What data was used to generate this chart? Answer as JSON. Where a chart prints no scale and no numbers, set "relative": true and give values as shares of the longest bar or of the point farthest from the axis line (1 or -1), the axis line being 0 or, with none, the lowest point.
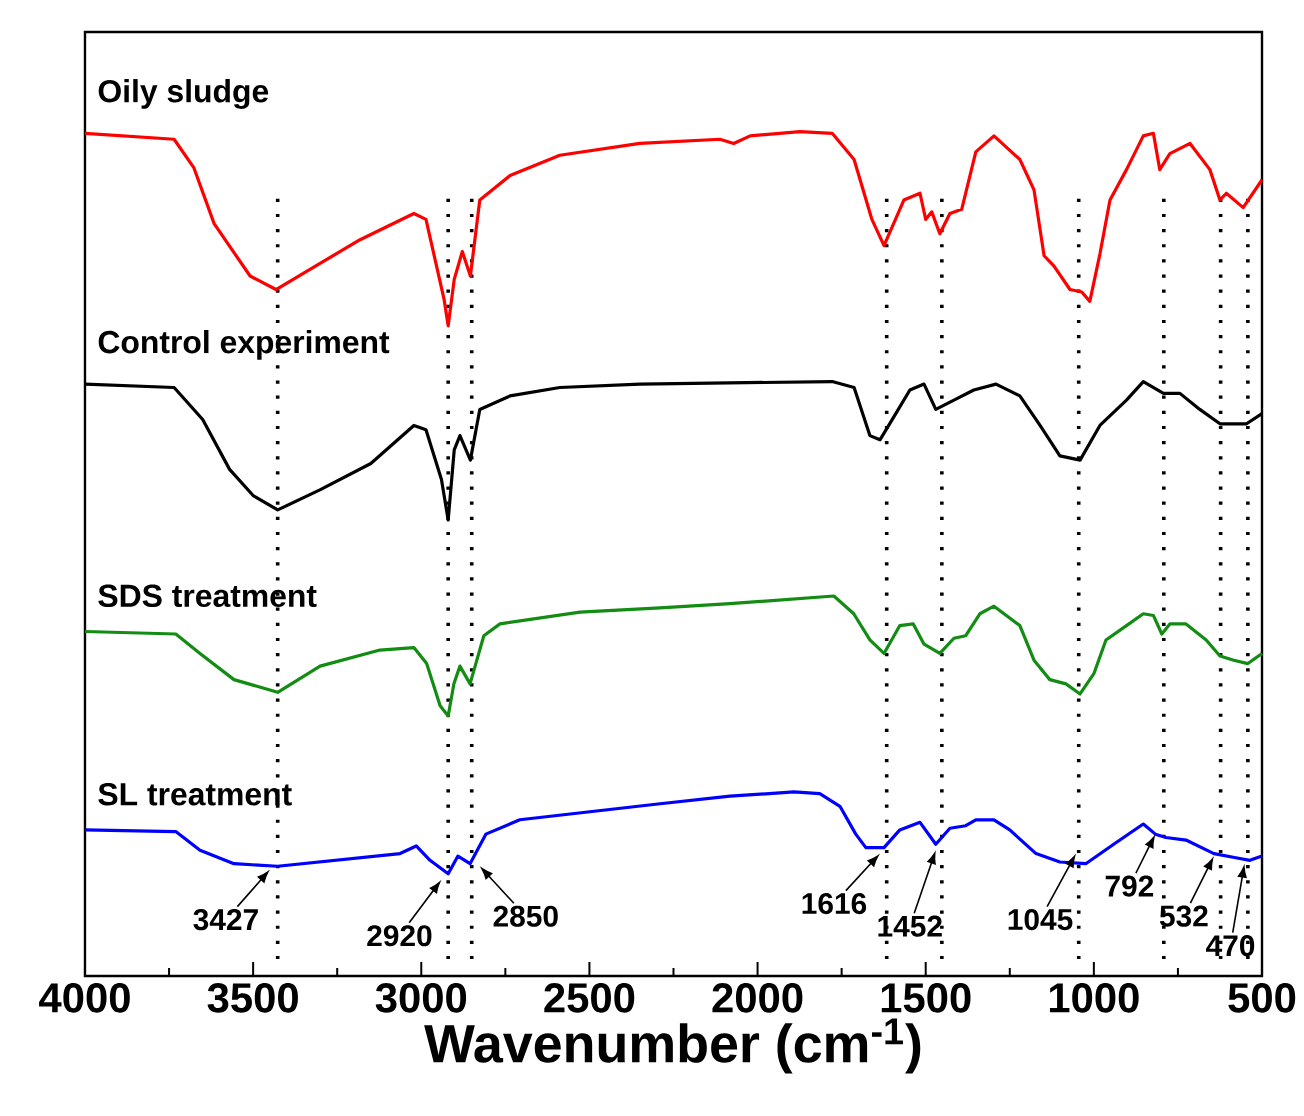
{
  "chart_data": {
    "type": "line",
    "relative": true,
    "xlabel": "Wavenumber (cm$^{-1}$)",
    "xlim": [
      4000,
      500
    ],
    "xticks": [
      4000,
      3500,
      3000,
      2500,
      2000,
      1500,
      1000,
      500
    ],
    "grid": false,
    "marker": "none",
    "line_style": "solid",
    "series": [
      {
        "name": "Oily sludge",
        "color": "#ff0000",
        "x": [
          4000,
          3735,
          3676,
          3616,
          3509,
          3432,
          3301,
          3182,
          3022,
          2986,
          2932,
          2920,
          2902,
          2878,
          2854,
          2826,
          2736,
          2588,
          2350,
          2112,
          2071,
          2022,
          1874,
          1778,
          1713,
          1660,
          1624,
          1565,
          1517,
          1500,
          1482,
          1458,
          1428,
          1393,
          1351,
          1297,
          1220,
          1178,
          1148,
          1119,
          1071,
          1036,
          1012,
          982,
          952,
          903,
          853,
          823,
          804,
          774,
          714,
          655,
          625,
          606,
          556,
          500
        ],
        "values": [
          0.998,
          0.991,
          0.957,
          0.891,
          0.829,
          0.813,
          0.844,
          0.872,
          0.903,
          0.896,
          0.801,
          0.77,
          0.825,
          0.858,
          0.829,
          0.919,
          0.948,
          0.972,
          0.986,
          0.991,
          0.986,
          0.995,
          1.0,
          0.998,
          0.967,
          0.896,
          0.865,
          0.919,
          0.927,
          0.896,
          0.905,
          0.879,
          0.903,
          0.908,
          0.976,
          0.995,
          0.967,
          0.931,
          0.853,
          0.841,
          0.813,
          0.81,
          0.799,
          0.855,
          0.919,
          0.955,
          0.995,
          0.998,
          0.955,
          0.974,
          0.986,
          0.955,
          0.919,
          0.927,
          0.91,
          0.943
        ]
      },
      {
        "name": "Control experiment",
        "color": "#000000",
        "x": [
          4000,
          3735,
          3650,
          3570,
          3500,
          3427,
          3300,
          3150,
          3022,
          2986,
          2940,
          2920,
          2902,
          2885,
          2854,
          2826,
          2736,
          2588,
          2350,
          1778,
          1713,
          1666,
          1636,
          1589,
          1547,
          1505,
          1470,
          1416,
          1357,
          1291,
          1220,
          1160,
          1101,
          1041,
          982,
          903,
          853,
          793,
          744,
          685,
          625,
          546,
          500
        ],
        "values": [
          0.701,
          0.697,
          0.659,
          0.6,
          0.569,
          0.552,
          0.576,
          0.607,
          0.652,
          0.647,
          0.588,
          0.54,
          0.623,
          0.64,
          0.611,
          0.671,
          0.687,
          0.697,
          0.701,
          0.704,
          0.697,
          0.64,
          0.635,
          0.666,
          0.694,
          0.701,
          0.671,
          0.682,
          0.694,
          0.701,
          0.687,
          0.652,
          0.616,
          0.611,
          0.652,
          0.682,
          0.704,
          0.69,
          0.69,
          0.671,
          0.654,
          0.654,
          0.666
        ]
      },
      {
        "name": "SDS treatment",
        "color": "#128c12",
        "x": [
          4000,
          3730,
          3658,
          3557,
          3427,
          3301,
          3123,
          3022,
          2984,
          2944,
          2920,
          2903,
          2885,
          2855,
          2814,
          2766,
          2528,
          2290,
          2082,
          1773,
          1714,
          1666,
          1624,
          1577,
          1537,
          1505,
          1458,
          1416,
          1381,
          1339,
          1297,
          1220,
          1178,
          1131,
          1083,
          1041,
          1000,
          964,
          903,
          853,
          823,
          798,
          774,
          726,
          666,
          625,
          584,
          542,
          500
        ],
        "values": [
          0.408,
          0.405,
          0.382,
          0.351,
          0.336,
          0.367,
          0.386,
          0.389,
          0.37,
          0.32,
          0.308,
          0.346,
          0.367,
          0.346,
          0.403,
          0.417,
          0.431,
          0.436,
          0.441,
          0.45,
          0.429,
          0.398,
          0.382,
          0.415,
          0.417,
          0.393,
          0.382,
          0.4,
          0.403,
          0.429,
          0.438,
          0.415,
          0.374,
          0.351,
          0.346,
          0.334,
          0.358,
          0.398,
          0.415,
          0.429,
          0.427,
          0.405,
          0.417,
          0.417,
          0.398,
          0.379,
          0.374,
          0.37,
          0.382
        ]
      },
      {
        "name": "SL treatment",
        "color": "#0000ff",
        "x": [
          4000,
          3730,
          3658,
          3557,
          3427,
          3063,
          3015,
          2974,
          2920,
          2891,
          2855,
          2808,
          2707,
          2290,
          2082,
          1892,
          1815,
          1755,
          1708,
          1678,
          1624,
          1577,
          1517,
          1470,
          1428,
          1381,
          1351,
          1297,
          1250,
          1172,
          1101,
          1024,
          941,
          853,
          817,
          786,
          726,
          643,
          578,
          536,
          500
        ],
        "values": [
          0.173,
          0.171,
          0.149,
          0.133,
          0.13,
          0.145,
          0.154,
          0.137,
          0.121,
          0.142,
          0.133,
          0.168,
          0.185,
          0.204,
          0.213,
          0.218,
          0.216,
          0.201,
          0.168,
          0.152,
          0.152,
          0.173,
          0.182,
          0.156,
          0.175,
          0.178,
          0.185,
          0.185,
          0.173,
          0.145,
          0.135,
          0.133,
          0.156,
          0.18,
          0.168,
          0.164,
          0.161,
          0.145,
          0.14,
          0.137,
          0.142
        ]
      }
    ],
    "ref_lines": [
      {
        "axis": "x",
        "value": 3427,
        "line_style": "dotted"
      },
      {
        "axis": "x",
        "value": 2920,
        "line_style": "dotted"
      },
      {
        "axis": "x",
        "value": 2850,
        "line_style": "dotted"
      },
      {
        "axis": "x",
        "value": 1616,
        "line_style": "dotted"
      },
      {
        "axis": "x",
        "value": 1452,
        "line_style": "dotted"
      },
      {
        "axis": "x",
        "value": 1045,
        "line_style": "dotted"
      },
      {
        "axis": "x",
        "value": 792,
        "line_style": "dotted"
      },
      {
        "axis": "x",
        "value": 623,
        "line_style": "dotted"
      },
      {
        "axis": "x",
        "value": 542,
        "line_style": "dotted"
      }
    ],
    "annotations": [
      {
        "text": "3427",
        "x": 3450,
        "y": 0.126
      },
      {
        "text": "2920",
        "x": 2940,
        "y": 0.114
      },
      {
        "text": "2850",
        "x": 2826,
        "y": 0.13
      },
      {
        "text": "1616",
        "x": 1636,
        "y": 0.145
      },
      {
        "text": "1452",
        "x": 1470,
        "y": 0.149
      },
      {
        "text": "1045",
        "x": 1053,
        "y": 0.145
      },
      {
        "text": "792",
        "x": 817,
        "y": 0.168
      },
      {
        "text": "532",
        "x": 643,
        "y": 0.142
      },
      {
        "text": "470",
        "x": 552,
        "y": 0.133
      }
    ]
  }
}
